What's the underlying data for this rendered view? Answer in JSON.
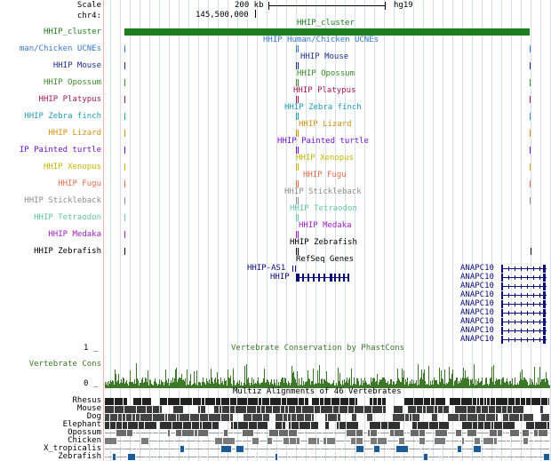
{
  "ruler": {
    "scale_label": "Scale",
    "chrom_label": "chr4:",
    "scale_value": "200 kb",
    "assembly": "hg19",
    "position": "145,500,000"
  },
  "colors": {
    "hhip_cluster": "#1e7d1e",
    "human_chicken": "#3a78c8",
    "mouse": "#1a2f8c",
    "opossum": "#3c8c28",
    "platypus": "#a0185a",
    "zebra_finch": "#229ab4",
    "lizard": "#d4900e",
    "painted_turtle": "#7a10c8",
    "xenopus": "#c8b400",
    "fugu": "#e06c4a",
    "stickleback": "#8c8c8c",
    "tetraodon": "#64c8a0",
    "medaka": "#a020c0",
    "zebrafish": "#000000",
    "refseq": "#0c0c78",
    "conservation": "#3c7828",
    "multiz": "#000000"
  },
  "tracks": [
    {
      "left_label": "HHIP_cluster",
      "center_label": "HHIP_cluster",
      "color_key": "hhip_cluster"
    },
    {
      "left_label": "man/Chicken UCNEs",
      "center_label": "HHIP Human/Chicken UCNEs",
      "color_key": "human_chicken"
    },
    {
      "left_label": "HHIP Mouse",
      "center_label": "HHIP Mouse",
      "color_key": "mouse"
    },
    {
      "left_label": "HHIP Opossum",
      "center_label": "HHIP Opossum",
      "color_key": "opossum"
    },
    {
      "left_label": "HHIP Platypus",
      "center_label": "HHIP Platypus",
      "color_key": "platypus"
    },
    {
      "left_label": "HHIP Zebra finch",
      "center_label": "HHIP Zebra finch",
      "color_key": "zebra_finch"
    },
    {
      "left_label": "HHIP Lizard",
      "center_label": "HHIP Lizard",
      "color_key": "lizard"
    },
    {
      "left_label": "IP Painted turtle",
      "center_label": "HHIP Painted turtle",
      "color_key": "painted_turtle"
    },
    {
      "left_label": "HHIP Xenopus",
      "center_label": "HHIP Xenopus",
      "color_key": "xenopus"
    },
    {
      "left_label": "HHIP Fugu",
      "center_label": "HHIP Fugu",
      "color_key": "fugu"
    },
    {
      "left_label": "HHIP Stickleback",
      "center_label": "HHIP Stickleback",
      "color_key": "stickleback"
    },
    {
      "left_label": "HHIP Tetraodon",
      "center_label": "HHIP Tetraodon",
      "color_key": "tetraodon"
    },
    {
      "left_label": "HHIP Medaka",
      "center_label": "HHIP Medaka",
      "color_key": "medaka"
    },
    {
      "left_label": "HHIP Zebrafish",
      "center_label": "HHIP Zebrafish",
      "color_key": "zebrafish"
    }
  ],
  "refseq": {
    "title": "RefSeq Genes",
    "hhip_as1": "HHIP-AS1",
    "hhip": "HHIP",
    "anapc10": [
      "ANAPC10",
      "ANAPC10",
      "ANAPC10",
      "ANAPC10",
      "ANAPC10",
      "ANAPC10",
      "ANAPC10",
      "ANAPC10",
      "ANAPC10"
    ]
  },
  "conservation": {
    "title": "Vertebrate Conservation by PhastCons",
    "left_label": "Vertebrate Cons",
    "axis_top": "1 _",
    "axis_bottom": "0 _"
  },
  "multiz": {
    "title": "Multiz Alignments of 46 Vertebrates",
    "species": [
      "Rhesus",
      "Mouse",
      "Dog",
      "Elephant",
      "Opossum",
      "Chicken",
      "X_tropicalis",
      "Zebrafish"
    ]
  }
}
